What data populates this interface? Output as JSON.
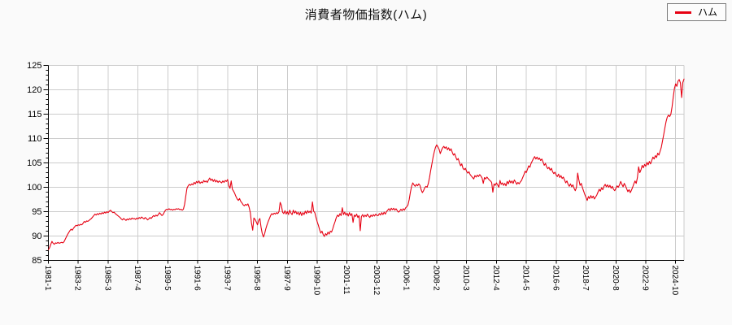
{
  "title": "消費者物価指数(ハム)",
  "legend": {
    "label": "ハム",
    "line_color": "#e60012"
  },
  "colors": {
    "page_bg": "#fafafa",
    "plot_bg": "#ffffff",
    "grid": "#cccccc",
    "axis": "#000000",
    "line": "#e60012",
    "legend_border": "#7a7a7a"
  },
  "chart_data": {
    "type": "line",
    "title": "消費者物価指数(ハム)",
    "series_name": "ハム",
    "x_start": "1981-1",
    "x_frequency": "monthly",
    "x_tick_interval_months": 25,
    "x_tick_labels": [
      "1981-1",
      "1983-2",
      "1985-3",
      "1987-4",
      "1989-5",
      "1991-6",
      "1993-7",
      "1995-8",
      "1997-9",
      "1999-10",
      "2001-11",
      "2003-12",
      "2006-1",
      "2008-2",
      "2010-3",
      "2012-4",
      "2014-5",
      "2016-6",
      "2018-7",
      "2020-8",
      "2022-9",
      "2024-10"
    ],
    "y_ticks": [
      85,
      90,
      95,
      100,
      105,
      110,
      115,
      120,
      125
    ],
    "ylim": [
      85,
      125
    ],
    "grid": true,
    "legend_position": "top-right",
    "values": [
      87.2,
      87.6,
      88.3,
      88.9,
      88.5,
      88.3,
      88.6,
      88.5,
      88.7,
      88.5,
      88.6,
      88.7,
      88.6,
      88.8,
      89.3,
      89.8,
      90.3,
      90.7,
      91.1,
      91.4,
      91.2,
      91.6,
      91.9,
      92.2,
      92.1,
      92.3,
      92.2,
      92.4,
      92.3,
      92.6,
      93.0,
      92.8,
      93.1,
      93.0,
      93.2,
      93.4,
      93.6,
      93.9,
      94.2,
      94.5,
      94.3,
      94.6,
      94.4,
      94.7,
      94.5,
      94.8,
      94.6,
      94.9,
      94.7,
      95.0,
      94.8,
      95.1,
      95.3,
      95.0,
      94.8,
      94.9,
      94.6,
      94.4,
      94.2,
      94.0,
      93.8,
      93.5,
      93.3,
      93.6,
      93.4,
      93.2,
      93.5,
      93.3,
      93.6,
      93.4,
      93.7,
      93.5,
      93.6,
      93.4,
      93.7,
      93.5,
      93.8,
      93.6,
      93.9,
      93.7,
      93.5,
      93.8,
      93.6,
      93.3,
      93.5,
      93.8,
      93.6,
      93.9,
      94.2,
      94.0,
      94.3,
      94.1,
      94.4,
      94.8,
      94.5,
      94.2,
      94.4,
      94.9,
      95.3,
      95.5,
      95.4,
      95.6,
      95.4,
      95.5,
      95.3,
      95.5,
      95.4,
      95.6,
      95.5,
      95.6,
      95.4,
      95.5,
      95.3,
      95.5,
      96.5,
      98.2,
      99.8,
      100.3,
      100.6,
      100.4,
      100.7,
      100.5,
      101.0,
      100.7,
      101.2,
      100.9,
      101.3,
      100.8,
      101.1,
      100.9,
      101.4,
      101.1,
      101.3,
      101.0,
      101.5,
      101.9,
      101.4,
      101.7,
      101.2,
      101.6,
      101.1,
      101.4,
      101.0,
      101.3,
      101.1,
      100.9,
      101.3,
      101.0,
      101.4,
      101.2,
      101.6,
      100.3,
      99.8,
      101.3,
      99.6,
      99.2,
      98.7,
      98.1,
      97.6,
      97.3,
      97.7,
      97.1,
      96.8,
      96.4,
      96.2,
      96.5,
      96.3,
      96.6,
      95.9,
      94.8,
      92.6,
      91.2,
      93.7,
      93.4,
      92.9,
      92.3,
      93.2,
      93.6,
      91.8,
      90.5,
      89.8,
      90.5,
      91.5,
      92.3,
      93.0,
      93.6,
      94.2,
      94.6,
      94.4,
      94.7,
      94.5,
      94.8,
      94.6,
      95.0,
      96.9,
      96.3,
      94.9,
      94.6,
      95.2,
      94.5,
      95.0,
      94.4,
      95.3,
      94.7,
      94.4,
      95.3,
      94.7,
      95.1,
      94.5,
      94.9,
      94.3,
      94.9,
      94.2,
      94.8,
      94.4,
      95.1,
      94.6,
      95.2,
      94.8,
      95.1,
      94.7,
      97.0,
      95.1,
      94.8,
      93.8,
      92.9,
      92.2,
      91.3,
      90.6,
      91.0,
      90.3,
      89.9,
      90.5,
      90.2,
      90.8,
      90.4,
      91.0,
      90.8,
      91.5,
      92.3,
      93.0,
      93.8,
      94.3,
      94.0,
      94.6,
      94.2,
      95.8,
      94.4,
      94.9,
      94.3,
      94.7,
      94.1,
      94.8,
      94.2,
      94.6,
      92.8,
      94.3,
      94.0,
      94.5,
      93.8,
      94.2,
      91.1,
      94.0,
      94.4,
      93.9,
      94.3,
      94.0,
      94.5,
      94.1,
      93.8,
      94.3,
      94.0,
      94.4,
      94.1,
      94.5,
      94.2,
      94.2,
      94.6,
      94.3,
      94.8,
      94.4,
      94.9,
      94.5,
      95.0,
      95.3,
      95.6,
      95.2,
      95.7,
      95.4,
      95.7,
      95.3,
      95.6,
      95.2,
      94.9,
      95.1,
      95.5,
      95.2,
      95.6,
      95.3,
      95.8,
      96.0,
      96.4,
      97.5,
      99.0,
      100.2,
      100.9,
      100.5,
      100.2,
      100.6,
      100.3,
      100.7,
      100.4,
      99.5,
      98.9,
      99.3,
      99.9,
      100.2,
      100.0,
      100.8,
      102.0,
      103.5,
      104.8,
      106.2,
      107.3,
      108.2,
      108.7,
      108.3,
      107.8,
      106.9,
      107.6,
      108.1,
      108.4,
      108.0,
      108.3,
      107.7,
      108.1,
      107.5,
      107.9,
      107.2,
      106.6,
      106.9,
      106.2,
      105.6,
      105.9,
      105.1,
      104.4,
      104.8,
      103.9,
      103.6,
      103.9,
      103.3,
      102.9,
      103.2,
      102.6,
      102.3,
      102.0,
      101.7,
      102.4,
      102.1,
      102.5,
      102.2,
      102.6,
      102.3,
      101.9,
      100.8,
      102.0,
      101.7,
      102.1,
      101.8,
      101.5,
      101.3,
      101.0,
      99.0,
      100.7,
      100.4,
      100.9,
      100.5,
      100.0,
      101.4,
      100.6,
      100.9,
      100.4,
      100.8,
      100.3,
      101.2,
      100.7,
      101.4,
      100.9,
      101.3,
      100.8,
      101.5,
      101.1,
      100.6,
      101.0,
      100.7,
      101.1,
      101.4,
      102.0,
      102.6,
      103.3,
      103.0,
      103.7,
      104.4,
      104.1,
      104.9,
      105.4,
      105.9,
      106.3,
      105.8,
      106.2,
      105.7,
      106.0,
      105.5,
      105.8,
      105.2,
      104.5,
      104.9,
      104.2,
      103.8,
      104.1,
      103.5,
      103.9,
      103.2,
      102.8,
      103.1,
      102.5,
      102.2,
      102.7,
      102.0,
      102.4,
      101.8,
      102.1,
      101.5,
      100.9,
      101.3,
      100.6,
      100.2,
      100.7,
      100.1,
      100.5,
      99.8,
      99.3,
      100.0,
      102.9,
      101.5,
      100.4,
      100.8,
      99.9,
      99.2,
      98.5,
      97.9,
      97.3,
      98.1,
      97.7,
      98.3,
      97.8,
      98.2,
      97.6,
      98.0,
      98.4,
      99.0,
      99.6,
      99.2,
      99.9,
      99.5,
      100.2,
      100.6,
      100.1,
      100.5,
      100.0,
      100.4,
      99.8,
      100.2,
      99.6,
      99.3,
      99.8,
      100.3,
      100.0,
      100.5,
      101.2,
      100.6,
      100.1,
      100.8,
      100.3,
      99.7,
      99.1,
      99.5,
      98.9,
      99.4,
      100.0,
      100.7,
      101.3,
      100.8,
      102.0,
      104.2,
      103.0,
      103.6,
      104.5,
      104.0,
      104.7,
      104.3,
      105.1,
      104.6,
      105.3,
      104.8,
      105.5,
      106.2,
      105.8,
      106.5,
      106.1,
      107.0,
      106.6,
      107.4,
      108.2,
      109.5,
      110.8,
      112.2,
      113.5,
      114.4,
      114.8,
      114.5,
      115.0,
      116.5,
      118.5,
      120.3,
      121.2,
      120.7,
      121.8,
      122.1,
      121.4,
      118.4,
      121.5,
      122.2
    ]
  }
}
